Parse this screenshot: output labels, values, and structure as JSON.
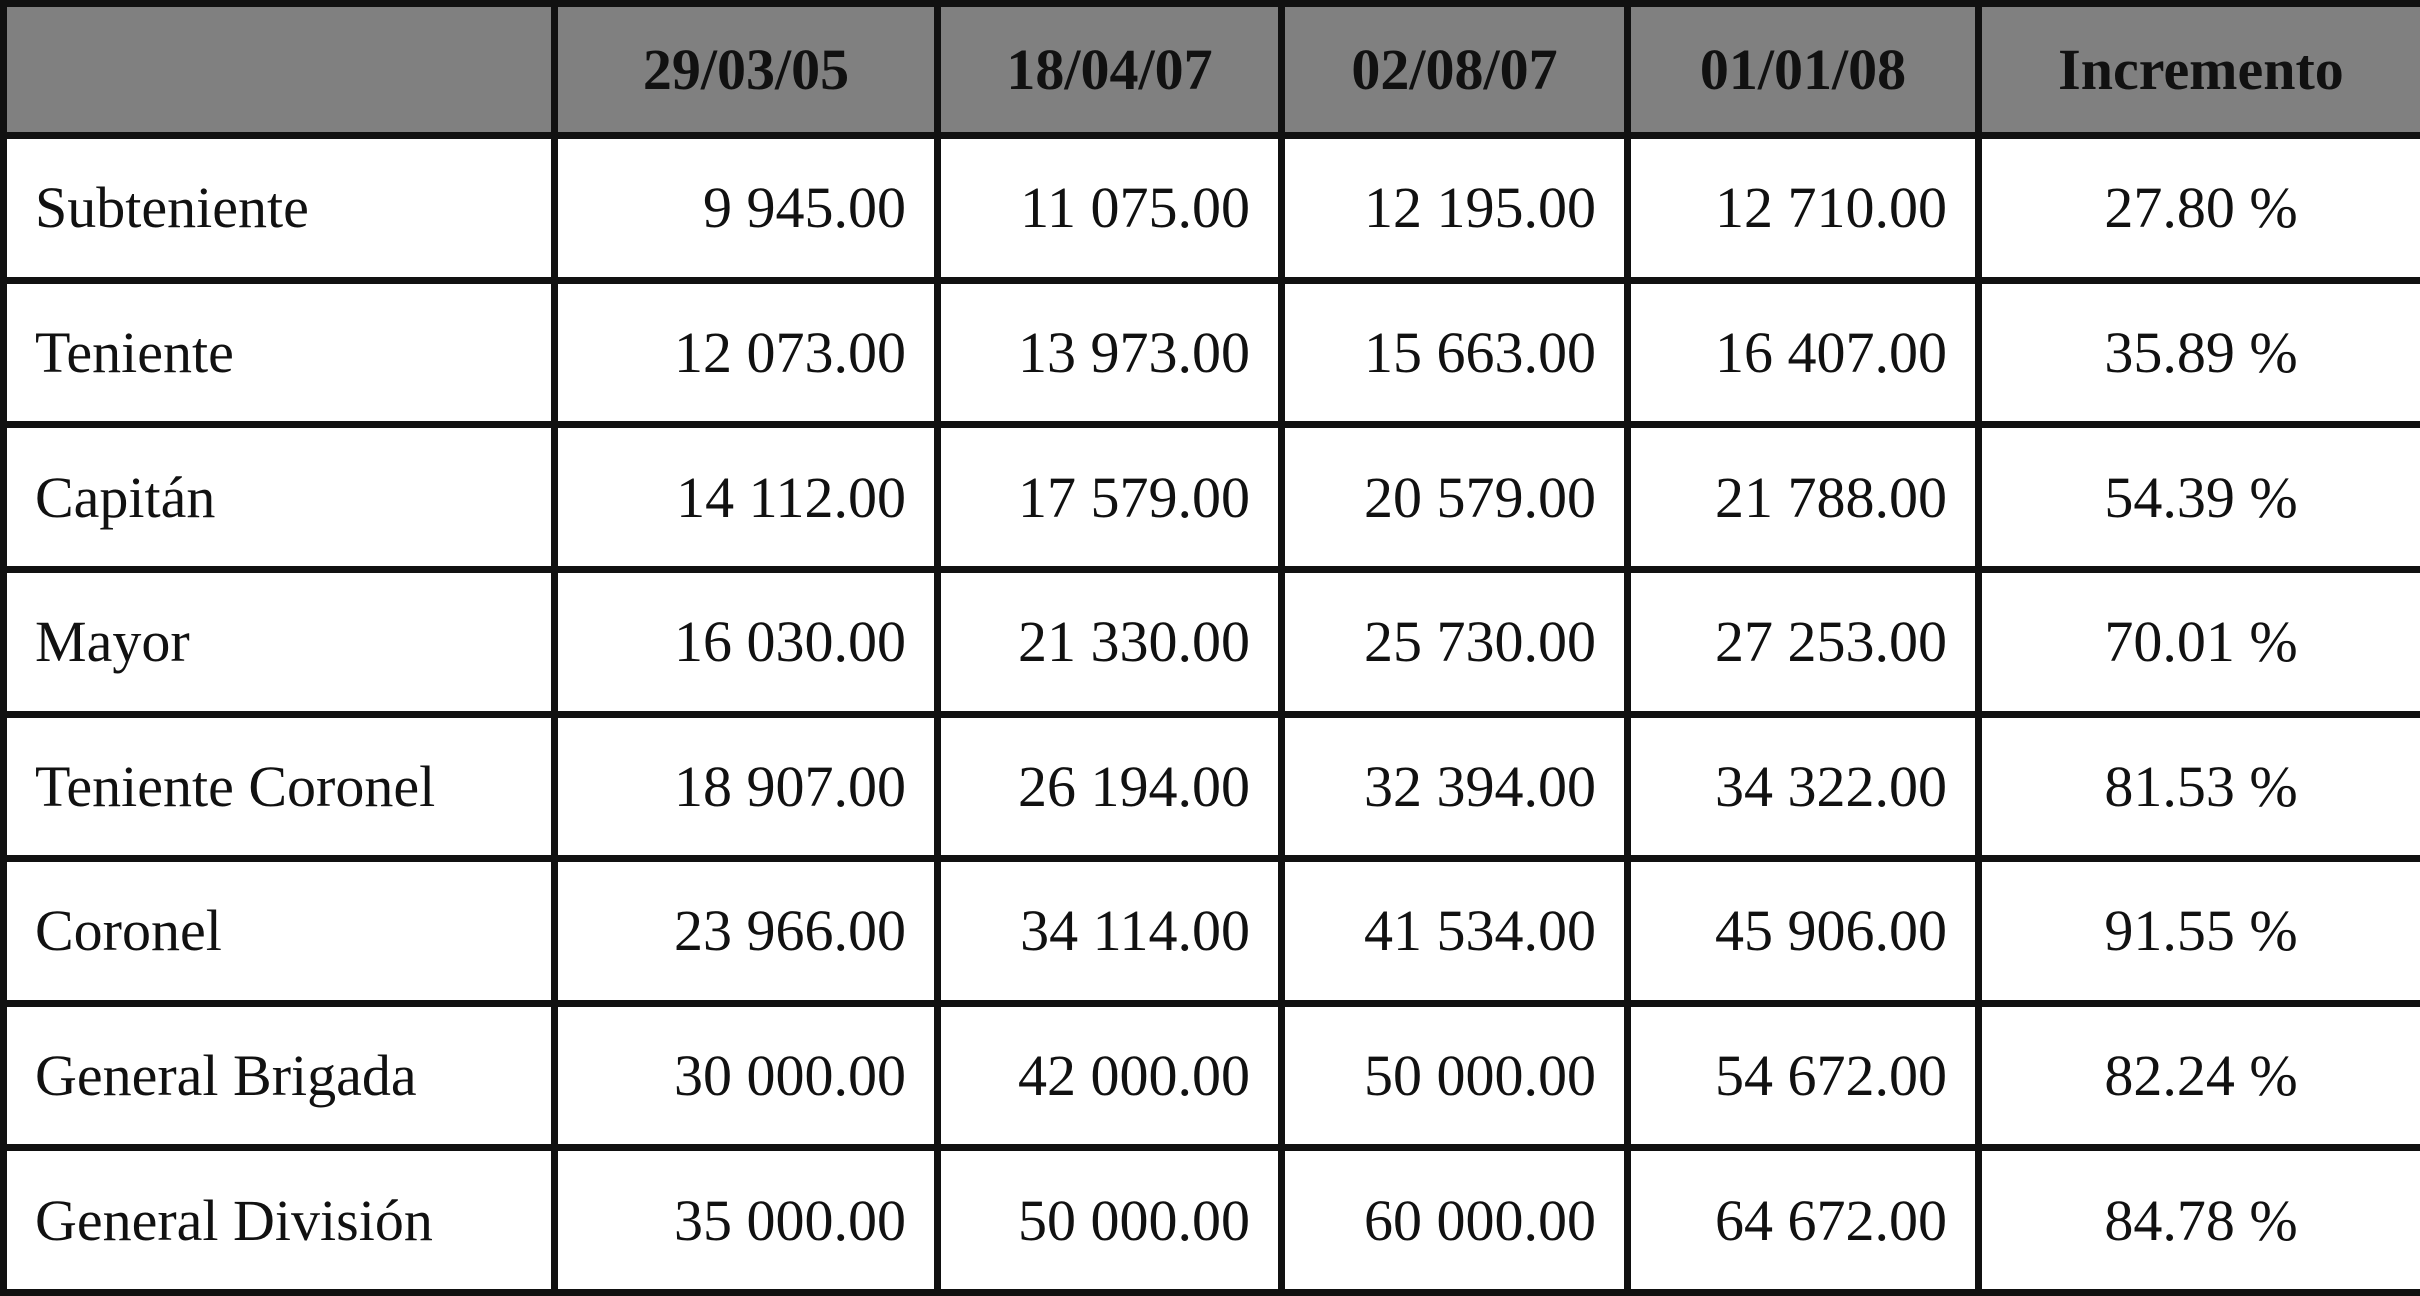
{
  "table": {
    "headers": [
      "",
      "29/03/05",
      "18/04/07",
      "02/08/07",
      "01/01/08",
      "Incremento"
    ],
    "rows": [
      {
        "label": "Subteniente",
        "values": [
          "9 945.00",
          "11 075.00",
          "12 195.00",
          "12 710.00"
        ],
        "increment": "27.80 %"
      },
      {
        "label": "Teniente",
        "values": [
          "12 073.00",
          "13 973.00",
          "15 663.00",
          "16 407.00"
        ],
        "increment": "35.89 %"
      },
      {
        "label": "Capitán",
        "values": [
          "14 112.00",
          "17 579.00",
          "20 579.00",
          "21 788.00"
        ],
        "increment": "54.39 %"
      },
      {
        "label": "Mayor",
        "values": [
          "16 030.00",
          "21 330.00",
          "25 730.00",
          "27 253.00"
        ],
        "increment": "70.01 %"
      },
      {
        "label": "Teniente Coronel",
        "values": [
          "18 907.00",
          "26 194.00",
          "32 394.00",
          "34 322.00"
        ],
        "increment": "81.53 %"
      },
      {
        "label": "Coronel",
        "values": [
          "23 966.00",
          "34 114.00",
          "41 534.00",
          "45 906.00"
        ],
        "increment": "91.55 %"
      },
      {
        "label": "General Brigada",
        "values": [
          "30 000.00",
          "42 000.00",
          "50 000.00",
          "54 672.00"
        ],
        "increment": "82.24 %"
      },
      {
        "label": "General División",
        "values": [
          "35 000.00",
          "50 000.00",
          "60 000.00",
          "64 672.00"
        ],
        "increment": "84.78 %"
      }
    ]
  },
  "colors": {
    "header_bg": "#808080",
    "border": "#111111"
  }
}
